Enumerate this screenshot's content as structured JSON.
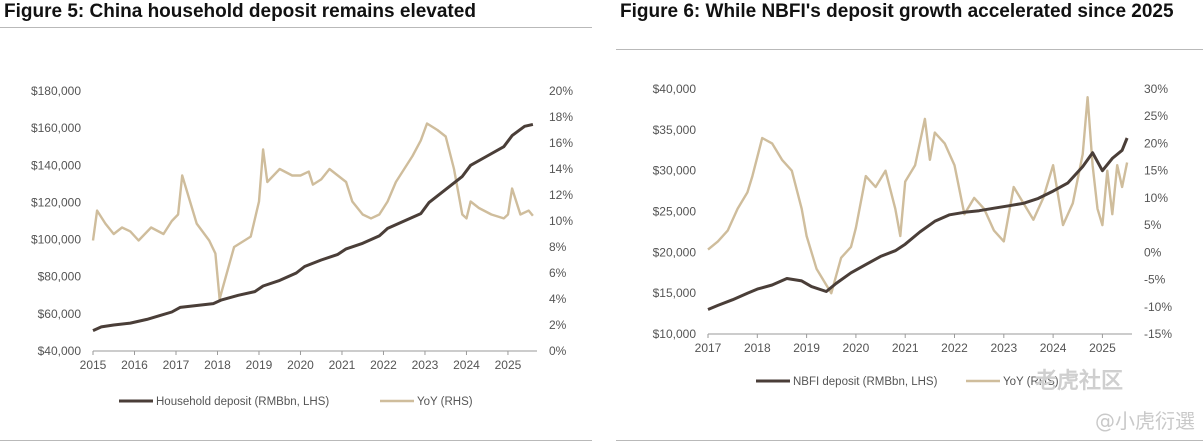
{
  "watermark": {
    "brand": "老虎社区",
    "handle": "@小虎衍選"
  },
  "chart_data": [
    {
      "type": "line",
      "title": "Figure 5: China household deposit remains elevated",
      "x_ticks": [
        "2015",
        "2016",
        "2017",
        "2018",
        "2019",
        "2020",
        "2021",
        "2022",
        "2023",
        "2024",
        "2025"
      ],
      "xlim": [
        2015.0,
        2025.7
      ],
      "y_left": {
        "ticks": [
          "$40,000",
          "$60,000",
          "$80,000",
          "$100,000",
          "$120,000",
          "$140,000",
          "$160,000",
          "$180,000"
        ],
        "ylim": [
          40000,
          180000
        ]
      },
      "y_right": {
        "ticks": [
          "0%",
          "2%",
          "4%",
          "6%",
          "8%",
          "10%",
          "12%",
          "14%",
          "16%",
          "18%",
          "20%"
        ],
        "ylim": [
          0,
          20
        ]
      },
      "legend_position": "bottom",
      "series": [
        {
          "name": "Household deposit (RMBbn, LHS)",
          "axis": "left",
          "color": "#4a3e38",
          "x": [
            2015.0,
            2015.2,
            2015.5,
            2015.9,
            2016.3,
            2016.6,
            2016.9,
            2017.1,
            2017.5,
            2017.9,
            2018.1,
            2018.5,
            2018.9,
            2019.1,
            2019.5,
            2019.9,
            2020.1,
            2020.5,
            2020.9,
            2021.1,
            2021.5,
            2021.9,
            2022.1,
            2022.5,
            2022.9,
            2023.1,
            2023.5,
            2023.9,
            2024.1,
            2024.5,
            2024.9,
            2025.1,
            2025.4,
            2025.6
          ],
          "values": [
            51000,
            53000,
            54000,
            55000,
            57000,
            59000,
            61000,
            63500,
            64500,
            65500,
            67500,
            70000,
            72000,
            75000,
            78000,
            82000,
            85500,
            89000,
            92000,
            95000,
            98000,
            102000,
            106000,
            110000,
            114000,
            120000,
            127000,
            134000,
            140000,
            145000,
            150000,
            156000,
            161000,
            162000
          ]
        },
        {
          "name": "YoY (RHS)",
          "axis": "right",
          "color": "#cfbd9c",
          "x": [
            2015.0,
            2015.1,
            2015.3,
            2015.5,
            2015.7,
            2015.9,
            2016.1,
            2016.4,
            2016.7,
            2016.9,
            2017.05,
            2017.15,
            2017.5,
            2017.8,
            2017.95,
            2018.05,
            2018.4,
            2018.8,
            2019.0,
            2019.1,
            2019.2,
            2019.5,
            2019.8,
            2020.0,
            2020.2,
            2020.3,
            2020.5,
            2020.7,
            2020.9,
            2021.1,
            2021.25,
            2021.5,
            2021.7,
            2021.9,
            2022.1,
            2022.3,
            2022.5,
            2022.7,
            2022.9,
            2023.05,
            2023.3,
            2023.5,
            2023.7,
            2023.9,
            2024.0,
            2024.1,
            2024.3,
            2024.6,
            2024.9,
            2025.0,
            2025.1,
            2025.3,
            2025.5,
            2025.6
          ],
          "values": [
            8.5,
            10.8,
            9.8,
            9.0,
            9.5,
            9.2,
            8.5,
            9.5,
            9.0,
            10.0,
            10.5,
            13.5,
            9.8,
            8.5,
            7.5,
            4.0,
            8.0,
            8.8,
            11.5,
            15.5,
            13.0,
            14.0,
            13.5,
            13.5,
            13.8,
            12.8,
            13.2,
            14.0,
            13.5,
            13.0,
            11.5,
            10.5,
            10.2,
            10.5,
            11.5,
            13.0,
            14.0,
            15.0,
            16.2,
            17.5,
            17.0,
            16.5,
            14.0,
            10.5,
            10.2,
            11.5,
            11.0,
            10.5,
            10.2,
            10.5,
            12.5,
            10.5,
            10.8,
            10.4
          ]
        }
      ]
    },
    {
      "type": "line",
      "title": "Figure 6: While NBFI's deposit growth accelerated since 2025",
      "x_ticks": [
        "2017",
        "2018",
        "2019",
        "2020",
        "2021",
        "2022",
        "2023",
        "2024",
        "2025"
      ],
      "xlim": [
        2017.0,
        2025.6
      ],
      "y_left": {
        "ticks": [
          "$10,000",
          "$15,000",
          "$20,000",
          "$25,000",
          "$30,000",
          "$35,000",
          "$40,000"
        ],
        "ylim": [
          10000,
          40000
        ]
      },
      "y_right": {
        "ticks": [
          "-15%",
          "-10%",
          "-5%",
          "0%",
          "5%",
          "10%",
          "15%",
          "20%",
          "25%",
          "30%"
        ],
        "ylim": [
          -15,
          30
        ]
      },
      "legend_position": "bottom",
      "series": [
        {
          "name": "NBFI deposit (RMBbn, LHS)",
          "axis": "left",
          "color": "#4a3e38",
          "x": [
            2017.0,
            2017.2,
            2017.5,
            2017.8,
            2018.0,
            2018.3,
            2018.6,
            2018.9,
            2019.1,
            2019.4,
            2019.6,
            2019.9,
            2020.2,
            2020.5,
            2020.8,
            2021.0,
            2021.3,
            2021.6,
            2021.9,
            2022.2,
            2022.5,
            2022.8,
            2023.1,
            2023.4,
            2023.7,
            2024.0,
            2024.3,
            2024.6,
            2024.8,
            2025.0,
            2025.2,
            2025.4,
            2025.5
          ],
          "values": [
            13000,
            13500,
            14200,
            15000,
            15500,
            16000,
            16800,
            16500,
            15800,
            15200,
            16200,
            17500,
            18500,
            19500,
            20200,
            21000,
            22500,
            23800,
            24600,
            24900,
            25100,
            25400,
            25700,
            26000,
            26600,
            27500,
            28500,
            30500,
            32200,
            30000,
            31500,
            32500,
            34000
          ]
        },
        {
          "name": "YoY (RHS)",
          "axis": "right",
          "color": "#cfbd9c",
          "x": [
            2017.0,
            2017.2,
            2017.4,
            2017.6,
            2017.8,
            2017.9,
            2018.0,
            2018.1,
            2018.3,
            2018.5,
            2018.7,
            2018.9,
            2019.0,
            2019.2,
            2019.4,
            2019.5,
            2019.7,
            2019.9,
            2020.0,
            2020.2,
            2020.4,
            2020.6,
            2020.8,
            2020.9,
            2021.0,
            2021.2,
            2021.4,
            2021.5,
            2021.6,
            2021.8,
            2022.0,
            2022.2,
            2022.4,
            2022.6,
            2022.8,
            2023.0,
            2023.2,
            2023.4,
            2023.6,
            2023.8,
            2024.0,
            2024.2,
            2024.4,
            2024.6,
            2024.7,
            2024.8,
            2024.9,
            2025.0,
            2025.1,
            2025.2,
            2025.3,
            2025.4,
            2025.5
          ],
          "values": [
            0.5,
            2.0,
            4.0,
            8.0,
            11.0,
            14.0,
            17.5,
            21.0,
            20.0,
            17.0,
            15.0,
            8.0,
            3.0,
            -3.0,
            -6.0,
            -7.5,
            -1.0,
            1.0,
            4.5,
            14.0,
            12.0,
            15.0,
            8.0,
            3.0,
            13.0,
            16.0,
            24.5,
            17.0,
            22.0,
            20.0,
            16.0,
            7.0,
            10.0,
            8.0,
            4.0,
            2.0,
            12.0,
            9.0,
            6.0,
            10.0,
            16.0,
            5.0,
            9.0,
            18.0,
            28.5,
            16.0,
            8.0,
            5.0,
            15.0,
            7.0,
            16.0,
            12.0,
            16.5
          ]
        }
      ]
    }
  ]
}
